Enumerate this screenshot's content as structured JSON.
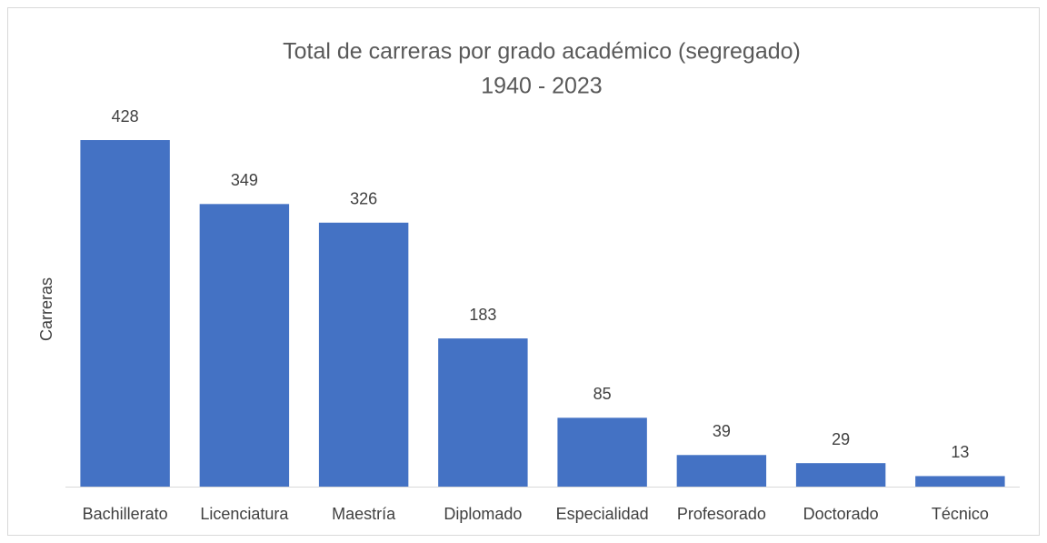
{
  "chart_data": {
    "type": "bar",
    "title": "Total de carreras por grado académico (segregado)",
    "subtitle": "1940 - 2023",
    "ylabel": "Carreras",
    "categories": [
      "Bachillerato",
      "Licenciatura",
      "Maestría",
      "Diplomado",
      "Especialidad",
      "Profesorado",
      "Doctorado",
      "Técnico"
    ],
    "values": [
      428,
      349,
      326,
      183,
      85,
      39,
      29,
      13
    ],
    "color": "#4472c4"
  }
}
